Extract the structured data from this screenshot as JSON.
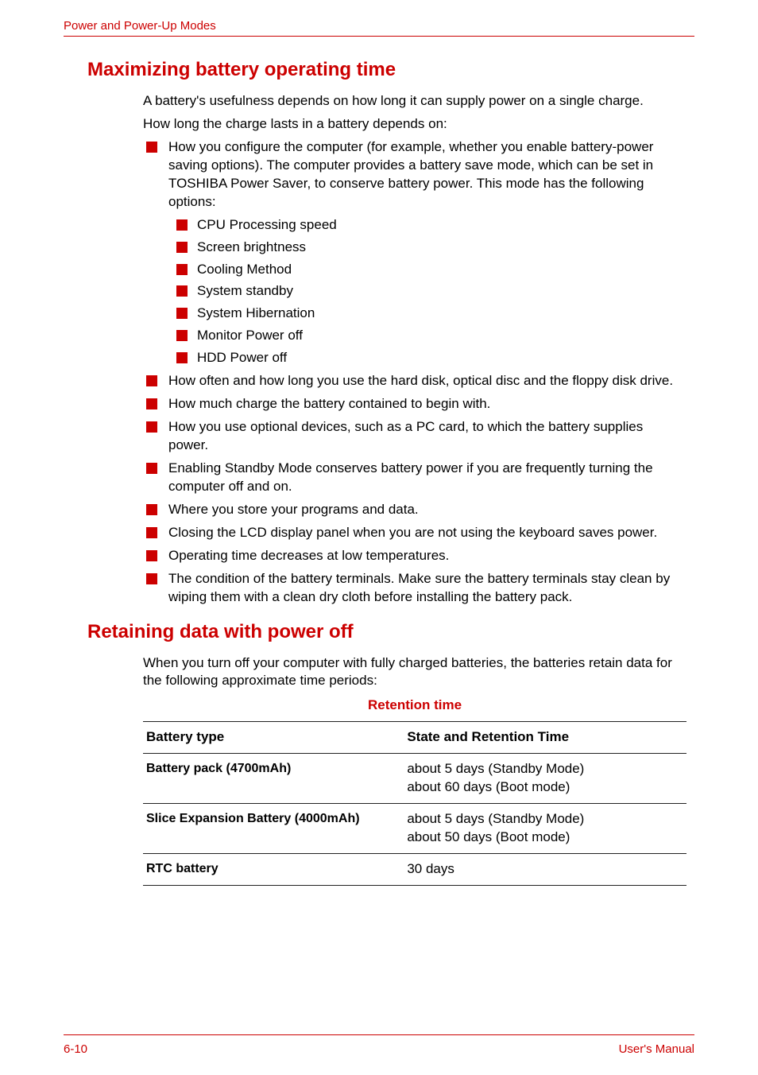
{
  "colors": {
    "accent": "#cc0000",
    "text": "#000000",
    "rule": "#222222",
    "bg": "#ffffff"
  },
  "header": {
    "section": "Power and Power-Up Modes"
  },
  "section1": {
    "title": "Maximizing battery operating time",
    "intro1": "A battery's usefulness depends on how long it can supply power on a single charge.",
    "intro2": "How long the charge lasts in a battery depends on:",
    "b0": "How you configure the computer (for example, whether you enable battery-power saving options). The computer provides a battery save mode, which can be set in TOSHIBA Power Saver, to conserve battery power. This mode has the following options:",
    "s0": "CPU Processing speed",
    "s1": "Screen brightness",
    "s2": "Cooling Method",
    "s3": "System standby",
    "s4": "System Hibernation",
    "s5": "Monitor Power off",
    "s6": "HDD Power off",
    "b1": "How often and how long you use the hard disk, optical disc and the floppy disk drive.",
    "b2": "How much charge the battery contained to begin with.",
    "b3": "How you use optional devices, such as a PC card, to which the battery supplies power.",
    "b4": "Enabling Standby Mode conserves battery power if you are frequently turning the computer off and on.",
    "b5": "Where you store your programs and data.",
    "b6": "Closing the LCD display panel when you are not using the keyboard saves power.",
    "b7": "Operating time decreases at low temperatures.",
    "b8": "The condition of the battery terminals. Make sure the battery terminals stay clean by wiping them with a clean dry cloth before installing the battery pack."
  },
  "section2": {
    "title": "Retaining data with power off",
    "intro": "When you turn off your computer with fully charged batteries, the batteries retain data for the following approximate time periods:",
    "table_title": "Retention time",
    "headers": {
      "c0": "Battery type",
      "c1": "State and Retention Time"
    },
    "rows": {
      "r0": {
        "c0": "Battery pack (4700mAh)",
        "c1a": "about 5 days (Standby Mode)",
        "c1b": "about 60 days (Boot mode)"
      },
      "r1": {
        "c0": "Slice Expansion Battery (4000mAh)",
        "c1a": "about 5 days (Standby Mode)",
        "c1b": "about 50 days (Boot mode)"
      },
      "r2": {
        "c0": "RTC battery",
        "c1a": "30 days"
      }
    }
  },
  "footer": {
    "page": "6-10",
    "doc": "User's Manual"
  }
}
